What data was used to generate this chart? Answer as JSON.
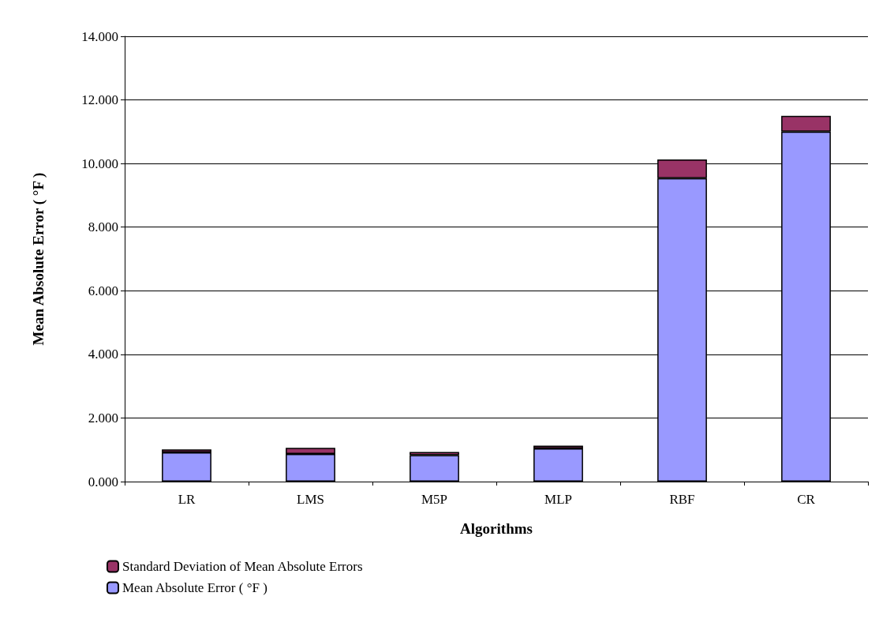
{
  "chart_data": {
    "type": "bar",
    "stacked": true,
    "xlabel": "Algorithms",
    "ylabel": "Mean Absolute Error ( °F )",
    "categories": [
      "LR",
      "LMS",
      "M5P",
      "MLP",
      "RBF",
      "CR"
    ],
    "series": [
      {
        "name": "Mean Absolute Error ( °F )",
        "color": "#9999ff",
        "values": [
          0.92,
          0.87,
          0.83,
          1.04,
          9.54,
          11.0
        ]
      },
      {
        "name": "Standard Deviation of Mean Absolute Errors",
        "color": "#993366",
        "values": [
          0.09,
          0.19,
          0.1,
          0.09,
          0.59,
          0.5
        ]
      }
    ],
    "ylim": [
      0,
      14
    ],
    "yticks": [
      {
        "value": 0,
        "label": "0.000"
      },
      {
        "value": 2,
        "label": "2.000"
      },
      {
        "value": 4,
        "label": "4.000"
      },
      {
        "value": 6,
        "label": "6.000"
      },
      {
        "value": 8,
        "label": "8.000"
      },
      {
        "value": 10,
        "label": "10.000"
      },
      {
        "value": 12,
        "label": "12.000"
      },
      {
        "value": 14,
        "label": "14.000"
      }
    ],
    "grid": "y",
    "legend": "bottom left"
  }
}
